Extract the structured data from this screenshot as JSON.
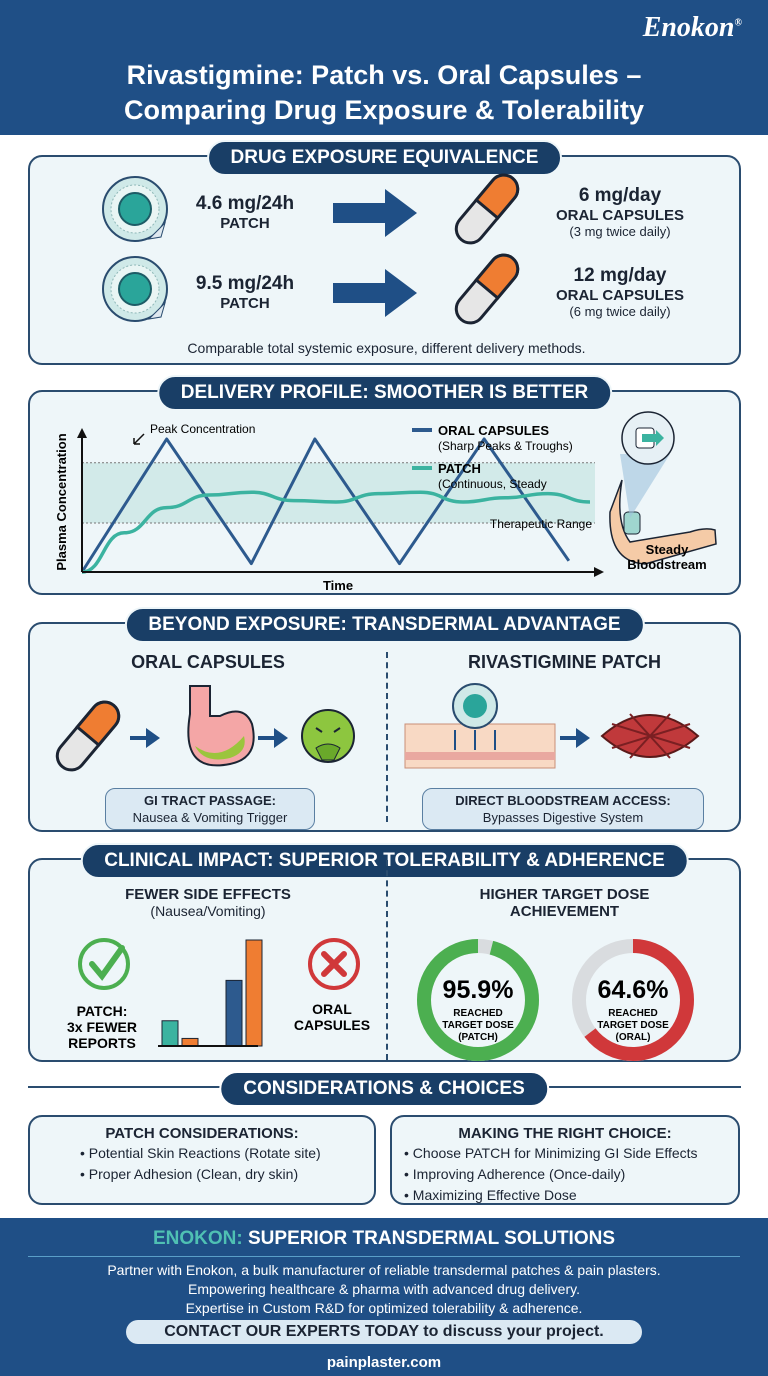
{
  "brand": {
    "logo": "Enokon",
    "registered": "®"
  },
  "header": {
    "title_line1": "Rivastigmine: Patch vs. Oral Capsules –",
    "title_line2": "Comparing Drug Exposure & Tolerability"
  },
  "colors": {
    "navy": "#1f4f86",
    "teal": "#3bb3a0",
    "orange": "#ef7d32",
    "blue": "#2d5a8e",
    "green": "#4caf50",
    "red": "#d0383a"
  },
  "exposure": {
    "heading": "DRUG EXPOSURE EQUIVALENCE",
    "rows": [
      {
        "patch_dose": "4.6 mg/24h",
        "patch_label": "PATCH",
        "oral_dose": "6 mg/day",
        "oral_label": "ORAL CAPSULES",
        "oral_note": "(3 mg twice daily)"
      },
      {
        "patch_dose": "9.5 mg/24h",
        "patch_label": "PATCH",
        "oral_dose": "12 mg/day",
        "oral_label": "ORAL CAPSULES",
        "oral_note": "(6 mg twice daily)"
      }
    ],
    "footnote": "Comparable total systemic exposure, different delivery methods.",
    "icons": [
      "patch-icon",
      "arrow-right-icon",
      "capsule-icon"
    ]
  },
  "delivery": {
    "heading": "DELIVERY PROFILE: SMOOTHER IS BETTER",
    "side_caption_line1": "Steady",
    "side_caption_line2": "Bloodstream",
    "icons": [
      "arm-patch-icon"
    ]
  },
  "chart_data": [
    {
      "type": "line",
      "title": "",
      "xlabel": "Time",
      "ylabel": "Plasma Concentration",
      "annotation": "Peak Concentration",
      "band_label": "Therapeutic Range",
      "band": [
        3.5,
        7.8
      ],
      "ylim": [
        0,
        10
      ],
      "xlim": [
        0,
        12
      ],
      "grid": false,
      "legend_placement": "top-right",
      "series": [
        {
          "name": "ORAL CAPSULES",
          "note": "(Sharp Peaks & Troughs)",
          "color": "#2d5a8e",
          "x": [
            0,
            2,
            4,
            5.5,
            7.5,
            9.5,
            11.5
          ],
          "y": [
            0,
            9.5,
            0.6,
            9.5,
            0.6,
            9.5,
            0.8
          ]
        },
        {
          "name": "PATCH",
          "note": "(Continuous, Steady",
          "color": "#3bb3a0",
          "x": [
            0,
            1,
            2,
            3,
            4,
            5,
            6,
            7,
            8,
            9,
            10,
            11,
            12
          ],
          "y": [
            0,
            2.8,
            4.6,
            5.5,
            5.7,
            5.1,
            5.0,
            5.6,
            5.7,
            5.0,
            5.3,
            5.6,
            5.0
          ]
        }
      ]
    },
    {
      "type": "bar",
      "title": "FEWER SIDE EFFECTS",
      "subtitle": "(Nausea/Vomiting)",
      "categories": [
        "PATCH",
        "ORAL CAPSULES"
      ],
      "series": [
        {
          "color": "#3bb3a0",
          "values": [
            1.0,
            null
          ]
        },
        {
          "color": "#ef7d32",
          "values": [
            0.3,
            null
          ]
        },
        {
          "color": "#2d5a8e",
          "values": [
            null,
            2.6
          ]
        },
        {
          "color": "#ef7d32",
          "values": [
            null,
            4.2
          ]
        }
      ],
      "left_label_line1": "PATCH:",
      "left_label_line2": "3x FEWER",
      "left_label_line3": "REPORTS",
      "right_label_line1": "ORAL",
      "right_label_line2": "CAPSULES"
    },
    {
      "type": "pie",
      "title": "HIGHER TARGET DOSE",
      "title_line2": "ACHIEVEMENT",
      "donuts": [
        {
          "value": 95.9,
          "label": "95.9%",
          "caption_line1": "REACHED",
          "caption_line2": "TARGET DOSE",
          "caption_line3": "(PATCH)",
          "color": "#4caf50"
        },
        {
          "value": 64.6,
          "label": "64.6%",
          "caption_line1": "REACHED",
          "caption_line2": "TARGET DOSE",
          "caption_line3": "(ORAL)",
          "color": "#d0383a"
        }
      ]
    }
  ],
  "advantage": {
    "heading": "BEYOND EXPOSURE: TRANSDERMAL ADVANTAGE",
    "left": {
      "title": "ORAL CAPSULES",
      "tag_title": "GI TRACT PASSAGE:",
      "tag_text": "Nausea & Vomiting Trigger"
    },
    "right": {
      "title": "RIVASTIGMINE PATCH",
      "tag_title": "DIRECT BLOODSTREAM ACCESS:",
      "tag_text": "Bypasses Digestive System"
    },
    "icons": [
      "capsule-icon",
      "stomach-icon",
      "nausea-face-icon",
      "skin-patch-icon",
      "blood-vessel-icon"
    ]
  },
  "clinical": {
    "heading": "CLINICAL IMPACT: SUPERIOR TOLERABILITY & ADHERENCE"
  },
  "considerations": {
    "heading": "CONSIDERATIONS & CHOICES",
    "left": {
      "title": "PATCH CONSIDERATIONS:",
      "items": [
        "Potential Skin Reactions (Rotate site)",
        "Proper Adhesion (Clean, dry skin)"
      ]
    },
    "right": {
      "title": "MAKING THE RIGHT CHOICE:",
      "items": [
        "Choose PATCH for Minimizing GI Side Effects",
        "Improving Adherence (Once-daily)",
        "Maximizing Effective Dose"
      ]
    }
  },
  "footer": {
    "brand": "ENOKON:",
    "heading": "SUPERIOR TRANSDERMAL SOLUTIONS",
    "lines": [
      "Partner with Enokon, a bulk manufacturer of reliable transdermal patches & pain plasters.",
      "Empowering healthcare & pharma with advanced drug delivery.",
      "Expertise in Custom R&D for optimized tolerability & adherence."
    ],
    "cta_bold": "CONTACT OUR EXPERTS TODAY",
    "cta_rest": " to discuss your project.",
    "website": "painplaster.com"
  }
}
